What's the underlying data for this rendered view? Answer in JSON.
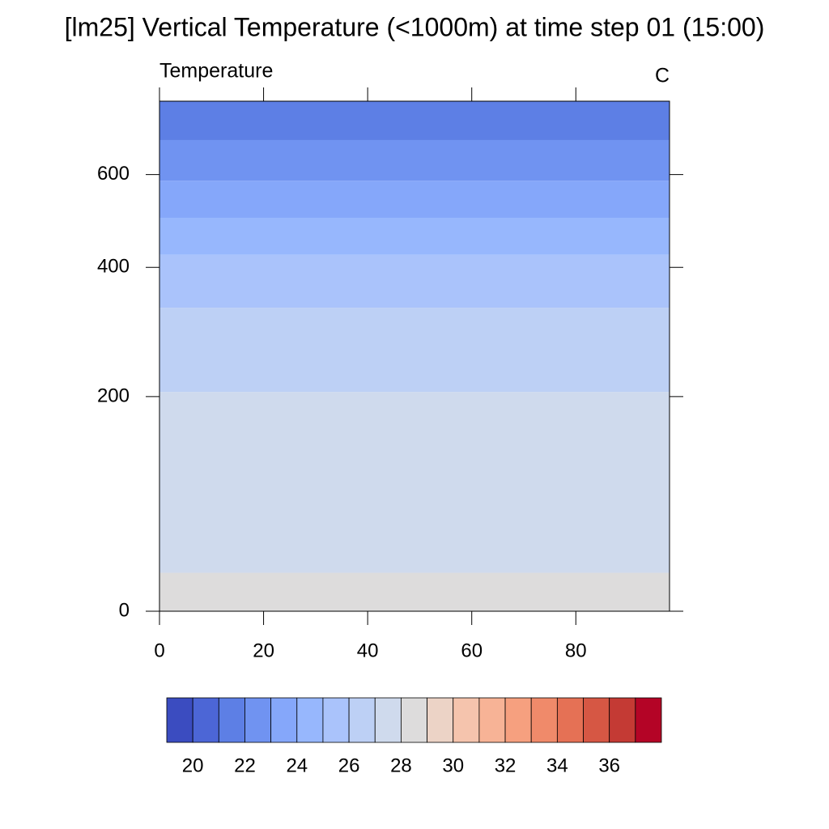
{
  "chart_data": {
    "type": "contour",
    "title": "[lm25] Vertical Temperature (<1000m) at time step 01 (15:00)",
    "left_string": "Temperature",
    "right_string": "C",
    "xlim": [
      0,
      98
    ],
    "xticks": [
      0,
      20,
      40,
      60,
      80
    ],
    "ylim": [
      0,
      803
    ],
    "yticks": [
      0,
      200,
      400,
      600
    ],
    "y_edges": [
      0,
      27,
      206,
      329,
      424,
      500,
      585,
      690,
      803
    ],
    "band_values": [
      28.5,
      27.5,
      26.5,
      25.5,
      24.5,
      23.5,
      22.5,
      21.5
    ],
    "levels": [
      20,
      21,
      22,
      23,
      24,
      25,
      26,
      27,
      28,
      29,
      30,
      31,
      32,
      33,
      34,
      35,
      36,
      37
    ],
    "level_labels": [
      20,
      22,
      24,
      26,
      28,
      30,
      32,
      34,
      36
    ],
    "colors": [
      "#3b4cc0",
      "#4c66d6",
      "#5d7fe5",
      "#7093f1",
      "#85a7fa",
      "#97b7fd",
      "#aac3fb",
      "#bdd0f5",
      "#cfdaed",
      "#dddcdc",
      "#ecd3c6",
      "#f5c4ad",
      "#f7b396",
      "#f6a07f",
      "#f08a6a",
      "#e57155",
      "#d65744",
      "#c43a34",
      "#b40426"
    ]
  }
}
